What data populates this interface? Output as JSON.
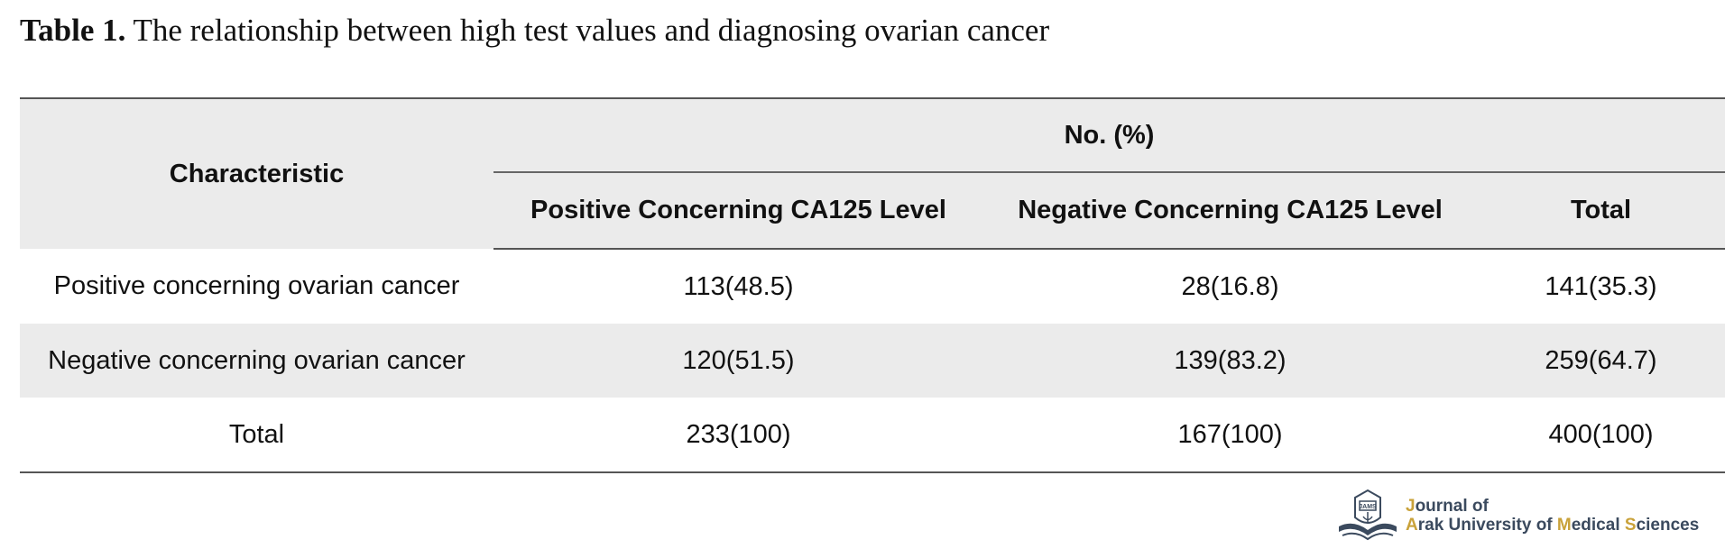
{
  "caption": {
    "label": "Table 1.",
    "text": "The relationship between high test values and diagnosing ovarian cancer"
  },
  "table": {
    "header_characteristic": "Characteristic",
    "header_group": "No. (%)",
    "columns": [
      "Positive Concerning CA125 Level",
      "Negative Concerning CA125 Level",
      "Total"
    ],
    "rows": [
      {
        "label": "Positive concerning ovarian cancer",
        "cells": [
          "113(48.5)",
          "28(16.8)",
          "141(35.3)"
        ]
      },
      {
        "label": "Negative concerning ovarian cancer",
        "cells": [
          "120(51.5)",
          "139(83.2)",
          "259(64.7)"
        ]
      },
      {
        "label": "Total",
        "cells": [
          "233(100)",
          "167(100)",
          "400(100)"
        ]
      }
    ]
  },
  "logo": {
    "line1_first": "J",
    "line1_rest": "ournal of",
    "line2_parts": [
      "A",
      "rak University of ",
      "M",
      "edical ",
      "S",
      "ciences"
    ],
    "seal_text": "JAMS",
    "accent_color": "#c9a23a",
    "text_color": "#3b4a5e"
  },
  "colors": {
    "header_bg": "#ebebeb",
    "rule": "#555555"
  }
}
